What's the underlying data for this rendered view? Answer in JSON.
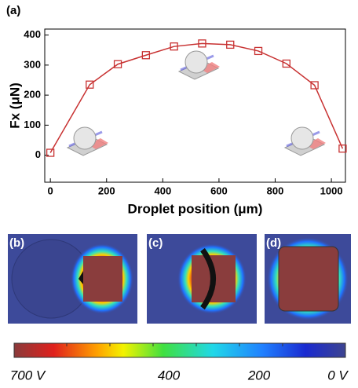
{
  "chart_data": {
    "type": "line",
    "panel_label": "(a)",
    "x_label": "Droplet position (μm)",
    "y_label": "Fx (μN)",
    "x": [
      0,
      140,
      240,
      340,
      440,
      540,
      640,
      740,
      840,
      940,
      1040
    ],
    "values": [
      8,
      235,
      303,
      333,
      362,
      372,
      368,
      347,
      305,
      233,
      22
    ],
    "color": "#c83232",
    "xlim": [
      -20,
      1050
    ],
    "xticks": [
      0,
      200,
      400,
      600,
      800,
      1000
    ],
    "ylim": [
      -90,
      420
    ],
    "yticks": [
      0,
      100,
      200,
      300,
      400
    ]
  },
  "field_panels": {
    "labels": [
      "(b)",
      "(c)",
      "(d)"
    ],
    "colorbar_labels": [
      "700 V",
      "400",
      "200",
      "0 V"
    ]
  }
}
